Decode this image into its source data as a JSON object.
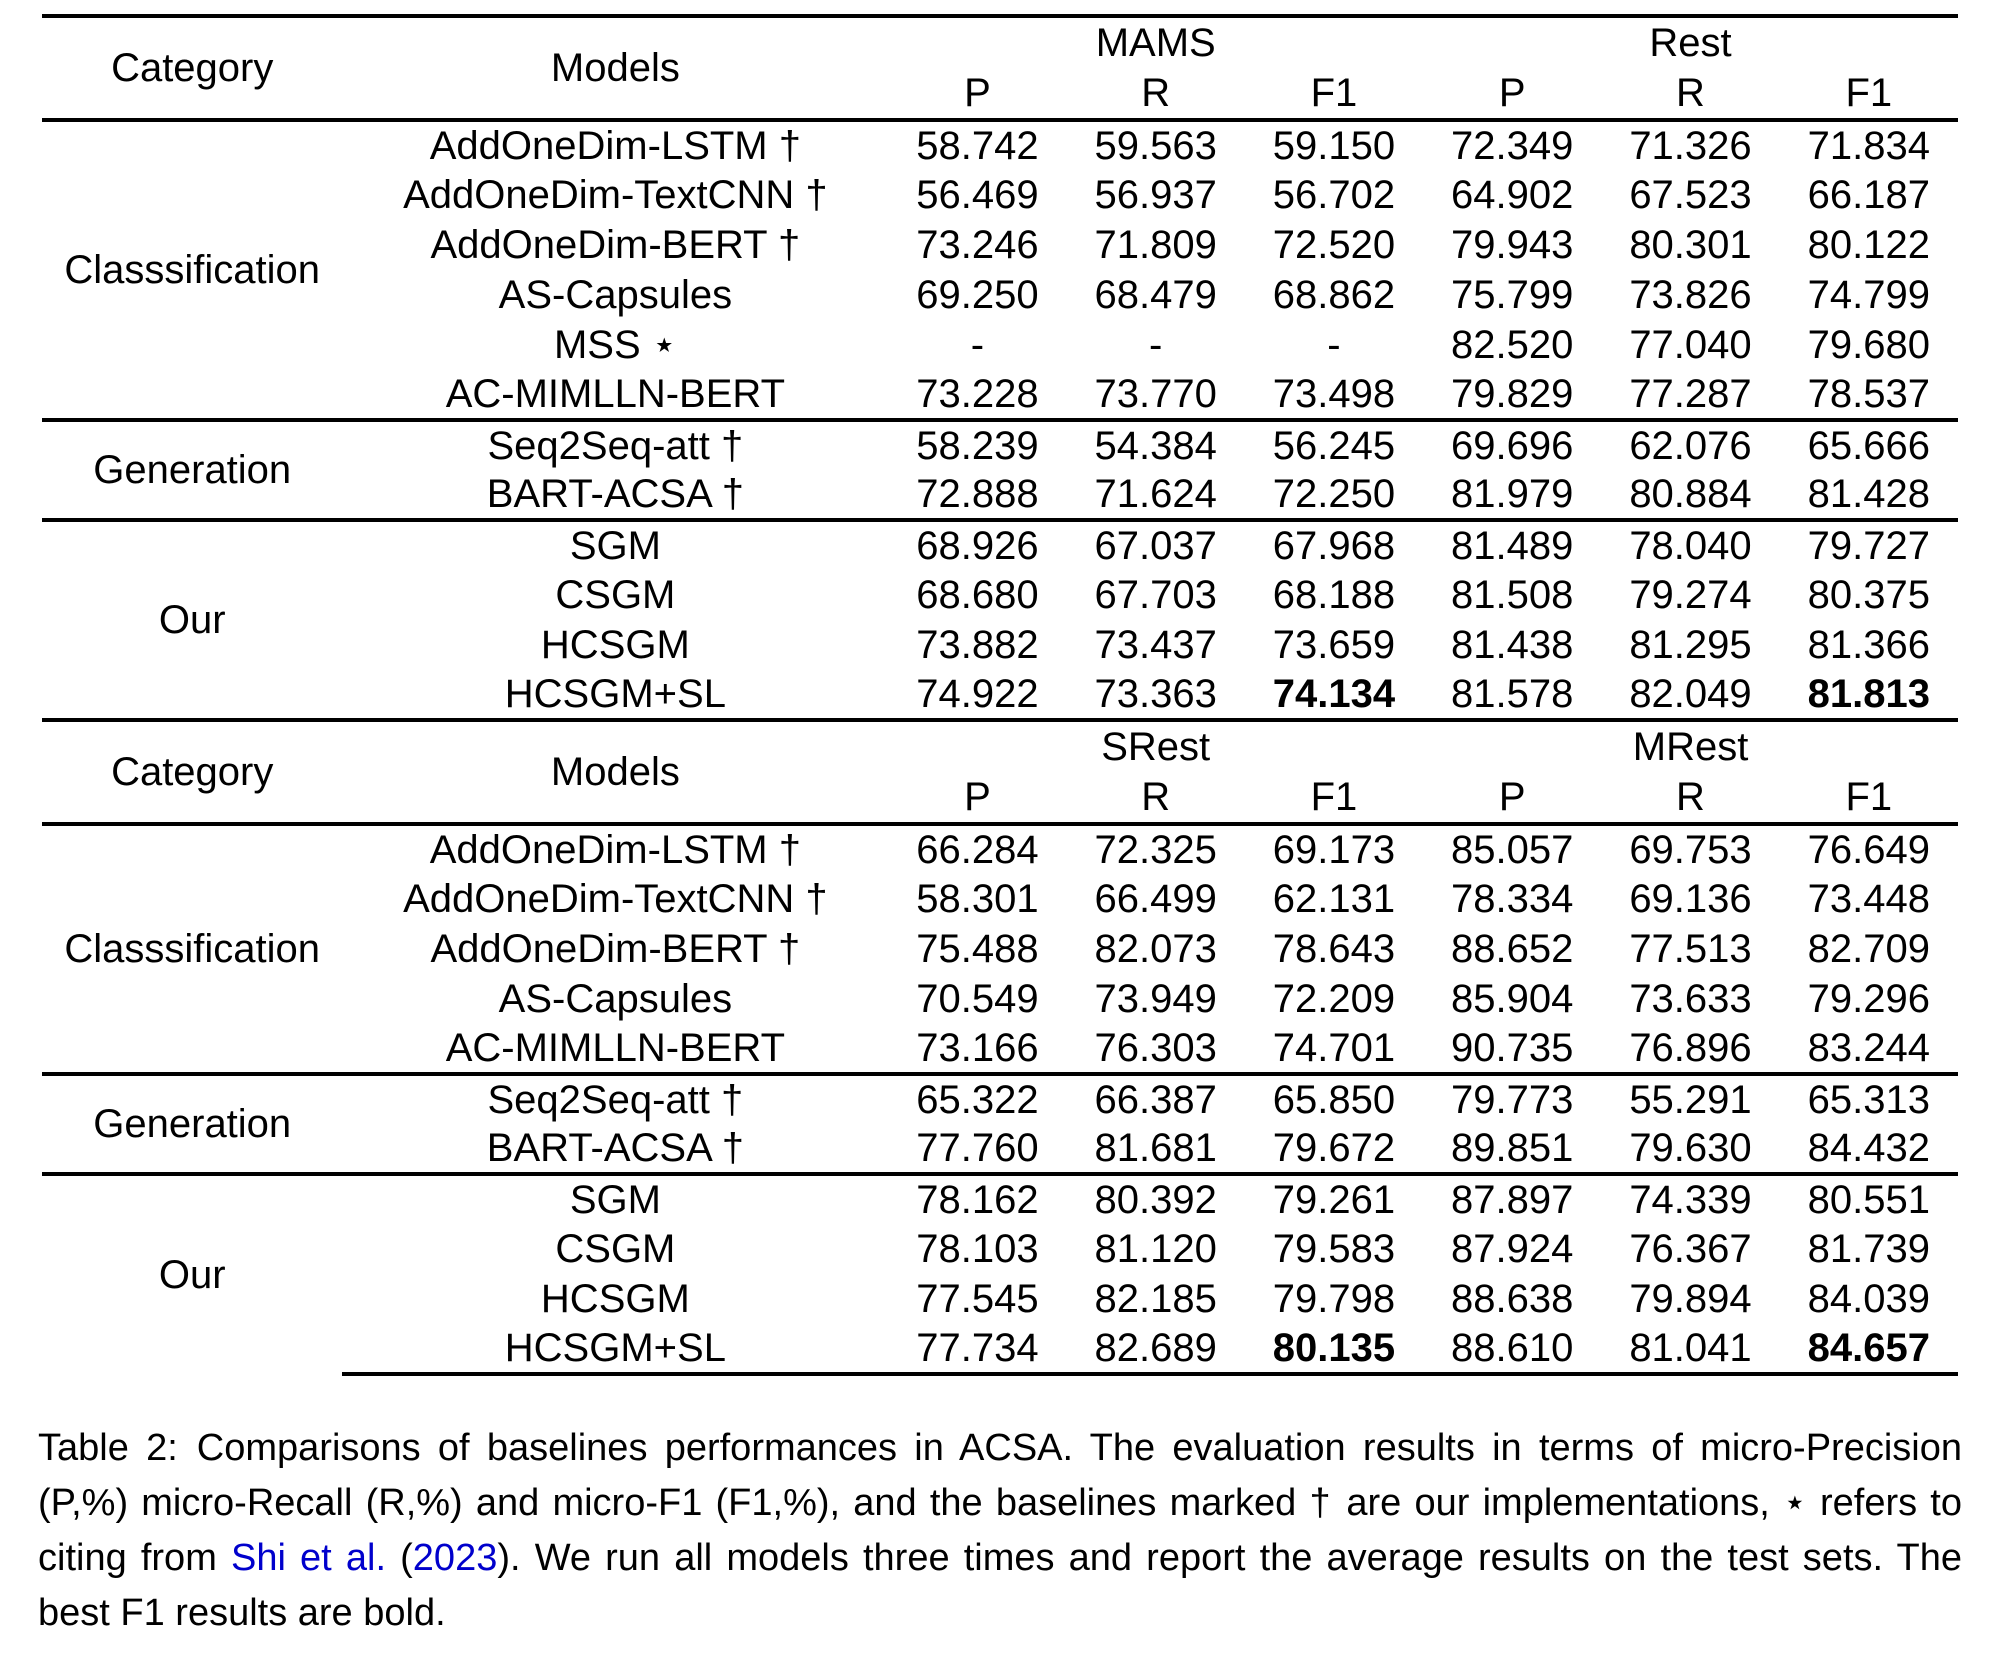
{
  "colors": {
    "text": "#000000",
    "background": "#ffffff",
    "link": "#0000CC"
  },
  "table1": {
    "header": {
      "category": "Category",
      "models": "Models",
      "group1": "MAMS",
      "group2": "Rest",
      "p": "P",
      "r": "R",
      "f1": "F1"
    },
    "sections": [
      {
        "category": "Classsification",
        "rows": [
          {
            "model": "AddOneDim-LSTM †",
            "v": [
              "58.742",
              "59.563",
              "59.150",
              "72.349",
              "71.326",
              "71.834"
            ]
          },
          {
            "model": "AddOneDim-TextCNN †",
            "v": [
              "56.469",
              "56.937",
              "56.702",
              "64.902",
              "67.523",
              "66.187"
            ]
          },
          {
            "model": "AddOneDim-BERT †",
            "v": [
              "73.246",
              "71.809",
              "72.520",
              "79.943",
              "80.301",
              "80.122"
            ]
          },
          {
            "model": "AS-Capsules",
            "v": [
              "69.250",
              "68.479",
              "68.862",
              "75.799",
              "73.826",
              "74.799"
            ]
          },
          {
            "model": "MSS ⋆",
            "v": [
              "-",
              "-",
              "-",
              "82.520",
              "77.040",
              "79.680"
            ]
          },
          {
            "model": "AC-MIMLLN-BERT",
            "v": [
              "73.228",
              "73.770",
              "73.498",
              "79.829",
              "77.287",
              "78.537"
            ]
          }
        ]
      },
      {
        "category": "Generation",
        "rows": [
          {
            "model": "Seq2Seq-att †",
            "v": [
              "58.239",
              "54.384",
              "56.245",
              "69.696",
              "62.076",
              "65.666"
            ]
          },
          {
            "model": "BART-ACSA †",
            "v": [
              "72.888",
              "71.624",
              "72.250",
              "81.979",
              "80.884",
              "81.428"
            ]
          }
        ]
      },
      {
        "category": "Our",
        "rows": [
          {
            "model": "SGM",
            "v": [
              "68.926",
              "67.037",
              "67.968",
              "81.489",
              "78.040",
              "79.727"
            ]
          },
          {
            "model": "CSGM",
            "v": [
              "68.680",
              "67.703",
              "68.188",
              "81.508",
              "79.274",
              "80.375"
            ]
          },
          {
            "model": "HCSGM",
            "v": [
              "73.882",
              "73.437",
              "73.659",
              "81.438",
              "81.295",
              "81.366"
            ]
          },
          {
            "model": "HCSGM+SL",
            "v": [
              "74.922",
              "73.363",
              "74.134",
              "81.578",
              "82.049",
              "81.813"
            ],
            "bold": [
              2,
              5
            ]
          }
        ]
      }
    ]
  },
  "table2": {
    "header": {
      "category": "Category",
      "models": "Models",
      "group1": "SRest",
      "group2": "MRest",
      "p": "P",
      "r": "R",
      "f1": "F1"
    },
    "sections": [
      {
        "category": "Classsification",
        "rows": [
          {
            "model": "AddOneDim-LSTM †",
            "v": [
              "66.284",
              "72.325",
              "69.173",
              "85.057",
              "69.753",
              "76.649"
            ]
          },
          {
            "model": "AddOneDim-TextCNN †",
            "v": [
              "58.301",
              "66.499",
              "62.131",
              "78.334",
              "69.136",
              "73.448"
            ]
          },
          {
            "model": "AddOneDim-BERT †",
            "v": [
              "75.488",
              "82.073",
              "78.643",
              "88.652",
              "77.513",
              "82.709"
            ]
          },
          {
            "model": "AS-Capsules",
            "v": [
              "70.549",
              "73.949",
              "72.209",
              "85.904",
              "73.633",
              "79.296"
            ]
          },
          {
            "model": "AC-MIMLLN-BERT",
            "v": [
              "73.166",
              "76.303",
              "74.701",
              "90.735",
              "76.896",
              "83.244"
            ]
          }
        ]
      },
      {
        "category": "Generation",
        "rows": [
          {
            "model": "Seq2Seq-att †",
            "v": [
              "65.322",
              "66.387",
              "65.850",
              "79.773",
              "55.291",
              "65.313"
            ]
          },
          {
            "model": "BART-ACSA †",
            "v": [
              "77.760",
              "81.681",
              "79.672",
              "89.851",
              "79.630",
              "84.432"
            ]
          }
        ]
      },
      {
        "category": "Our",
        "rows": [
          {
            "model": "SGM",
            "v": [
              "78.162",
              "80.392",
              "79.261",
              "87.897",
              "74.339",
              "80.551"
            ]
          },
          {
            "model": "CSGM",
            "v": [
              "78.103",
              "81.120",
              "79.583",
              "87.924",
              "76.367",
              "81.739"
            ]
          },
          {
            "model": "HCSGM",
            "v": [
              "77.545",
              "82.185",
              "79.798",
              "88.638",
              "79.894",
              "84.039"
            ]
          },
          {
            "model": "HCSGM+SL",
            "v": [
              "77.734",
              "82.689",
              "80.135",
              "88.610",
              "81.041",
              "84.657"
            ],
            "bold": [
              2,
              5
            ]
          }
        ]
      }
    ]
  },
  "caption": {
    "pre": "Table 2: Comparisons of baselines performances in ACSA. The evaluation results in terms of micro-Precision (P,%) micro-Recall (R,%) and micro-F1 (F1,%), and the baselines marked † are our implementations, ⋆ refers to citing from ",
    "cite_author": "Shi et al.",
    "mid": " (",
    "cite_year": "2023",
    "post": "). We run all models three times and report the average results on the test sets. The best F1 results are bold."
  }
}
